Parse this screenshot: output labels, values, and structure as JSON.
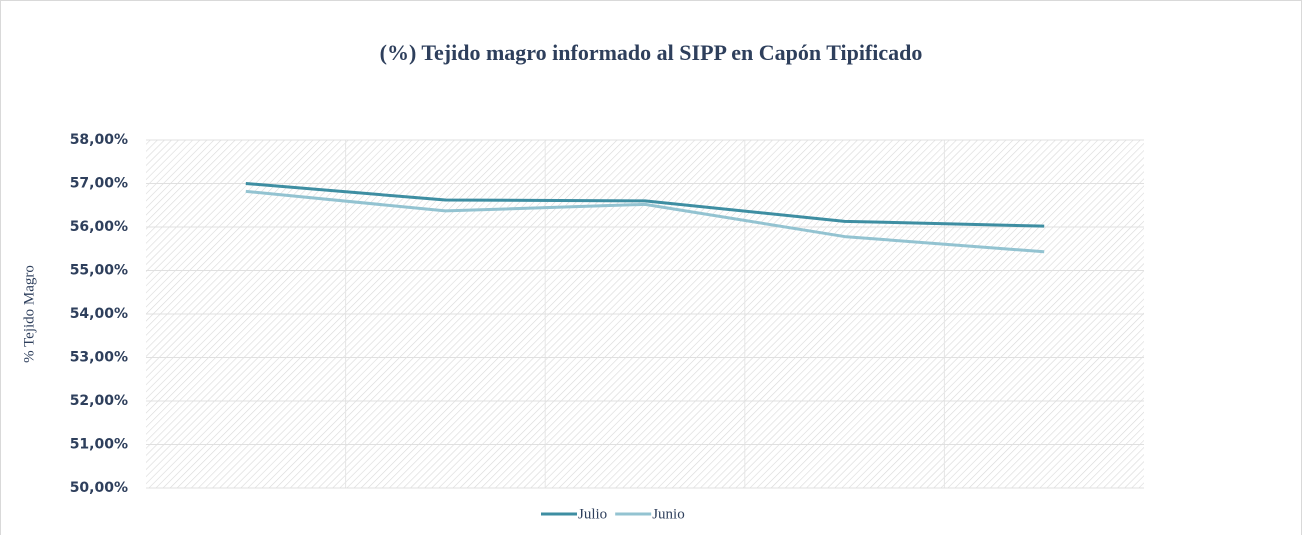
{
  "chart_data": {
    "type": "line",
    "title": "(%) Tejido magro informado al SIPP en Capón Tipificado",
    "y_label": "% Tejido Magro",
    "categories": [
      null,
      null,
      null,
      null,
      null
    ],
    "series": [
      {
        "name": "Julio",
        "color": "#3e8ea2",
        "values": [
          57.0,
          56.62,
          56.6,
          56.13,
          56.02
        ]
      },
      {
        "name": "Junio",
        "color": "#93c3d1",
        "values": [
          56.82,
          56.37,
          56.52,
          55.78,
          55.43
        ]
      }
    ],
    "ylim": [
      50,
      58
    ],
    "yticks": [
      {
        "value": 50,
        "label": "50,00%"
      },
      {
        "value": 51,
        "label": "51,00%"
      },
      {
        "value": 52,
        "label": "52,00%"
      },
      {
        "value": 53,
        "label": "53,00%"
      },
      {
        "value": 54,
        "label": "54,00%"
      },
      {
        "value": 55,
        "label": "55,00%"
      },
      {
        "value": 56,
        "label": "56,00%"
      },
      {
        "value": 57,
        "label": "57,00%"
      },
      {
        "value": 58,
        "label": "58,00%"
      }
    ],
    "grid": true,
    "legend": "bottom"
  }
}
